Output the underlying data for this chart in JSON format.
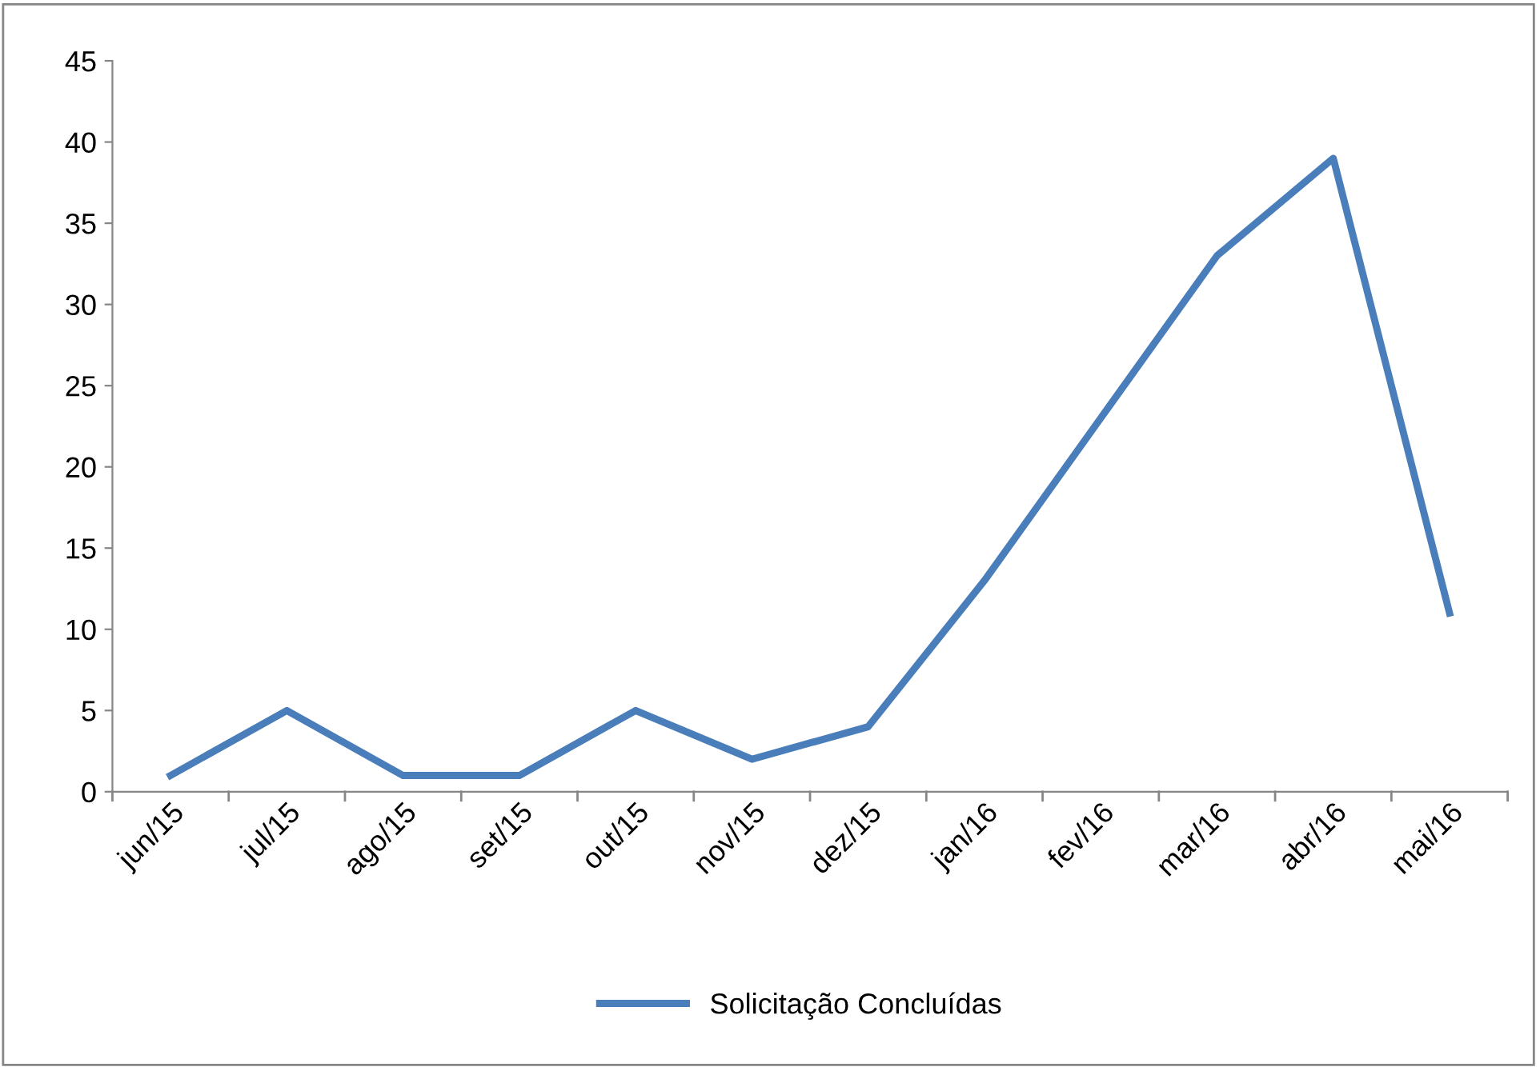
{
  "chart_data": {
    "type": "line",
    "categories": [
      "jun/15",
      "jul/15",
      "ago/15",
      "set/15",
      "out/15",
      "nov/15",
      "dez/15",
      "jan/16",
      "fev/16",
      "mar/16",
      "abr/16",
      "mai/16"
    ],
    "series": [
      {
        "name": "Solicitação Concluídas",
        "color": "#4a7ebb",
        "values": [
          1,
          5,
          1,
          1,
          5,
          2,
          4,
          13,
          23,
          33,
          39,
          11
        ]
      }
    ],
    "ylim": [
      0,
      45
    ],
    "yticks": [
      0,
      5,
      10,
      15,
      20,
      25,
      30,
      35,
      40,
      45
    ],
    "grid": false,
    "legend": "bottom",
    "marker": "none",
    "line_style": "solid"
  }
}
